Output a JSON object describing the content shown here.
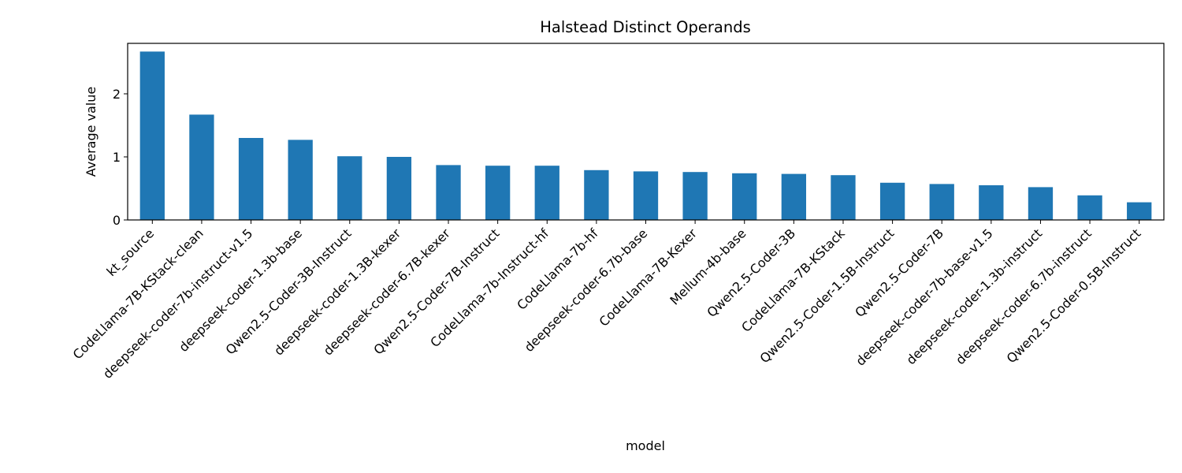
{
  "chart_data": {
    "type": "bar",
    "title": "Halstead Distinct Operands",
    "xlabel": "model",
    "ylabel": "Average value",
    "ylim": [
      0,
      2.8
    ],
    "yticks": [
      0,
      1,
      2
    ],
    "grid": false,
    "legend": "none",
    "bar_color": "#1f77b4",
    "categories": [
      "kt_source",
      "CodeLlama-7B-KStack-clean",
      "deepseek-coder-7b-instruct-v1.5",
      "deepseek-coder-1.3b-base",
      "Qwen2.5-Coder-3B-Instruct",
      "deepseek-coder-1.3B-kexer",
      "deepseek-coder-6.7B-kexer",
      "Qwen2.5-Coder-7B-Instruct",
      "CodeLlama-7b-Instruct-hf",
      "CodeLlama-7b-hf",
      "deepseek-coder-6.7b-base",
      "CodeLlama-7B-Kexer",
      "Mellum-4b-base",
      "Qwen2.5-Coder-3B",
      "CodeLlama-7B-KStack",
      "Qwen2.5-Coder-1.5B-Instruct",
      "Qwen2.5-Coder-7B",
      "deepseek-coder-7b-base-v1.5",
      "deepseek-coder-1.3b-instruct",
      "deepseek-coder-6.7b-instruct",
      "Qwen2.5-Coder-0.5B-Instruct"
    ],
    "values": [
      2.67,
      1.67,
      1.3,
      1.27,
      1.01,
      1.0,
      0.87,
      0.86,
      0.86,
      0.79,
      0.77,
      0.76,
      0.74,
      0.73,
      0.71,
      0.59,
      0.57,
      0.55,
      0.52,
      0.39,
      0.28
    ]
  }
}
